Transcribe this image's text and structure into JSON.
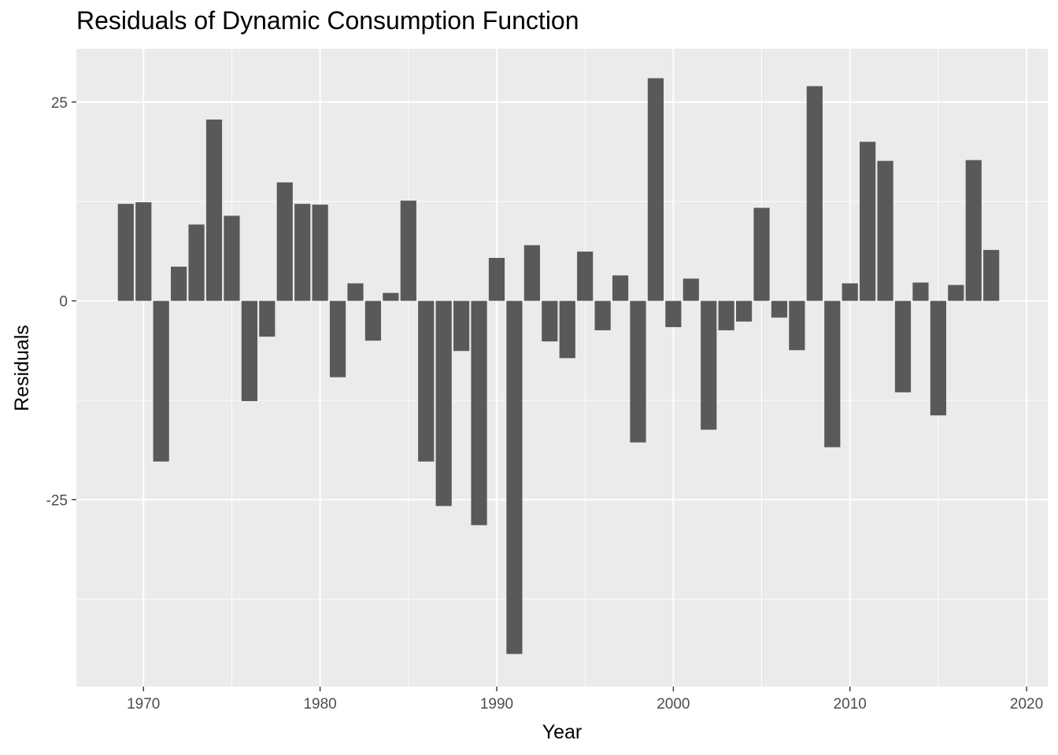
{
  "chart_data": {
    "type": "bar",
    "title": "Residuals of Dynamic Consumption Function",
    "xlabel": "Year",
    "ylabel": "Residuals",
    "xlim": [
      1966.2,
      2021.2
    ],
    "ylim": [
      -48.5,
      31.7
    ],
    "x_ticks": [
      1970,
      1980,
      1990,
      2000,
      2010,
      2020
    ],
    "y_ticks": [
      25,
      0,
      -25
    ],
    "y_tick_labels": [
      "25",
      "0",
      "-25"
    ],
    "grid": true,
    "legend": "none",
    "colors": {
      "panel": "#EBEBEB",
      "grid": "#FFFFFF",
      "bar": "#595959",
      "tick_text": "#4D4D4D"
    },
    "x": [
      1969,
      1970,
      1971,
      1972,
      1973,
      1974,
      1975,
      1976,
      1977,
      1978,
      1979,
      1980,
      1981,
      1982,
      1983,
      1984,
      1985,
      1986,
      1987,
      1988,
      1989,
      1990,
      1991,
      1992,
      1993,
      1994,
      1995,
      1996,
      1997,
      1998,
      1999,
      2000,
      2001,
      2002,
      2003,
      2004,
      2005,
      2006,
      2007,
      2008,
      2009,
      2010,
      2011,
      2012,
      2013,
      2014,
      2015,
      2016,
      2017,
      2018
    ],
    "values": [
      12.2,
      12.4,
      -20.2,
      4.3,
      9.6,
      22.8,
      10.7,
      -12.6,
      -4.5,
      14.9,
      12.2,
      12.1,
      -9.6,
      2.2,
      -5.0,
      1.0,
      12.6,
      -20.2,
      -25.8,
      -6.3,
      -28.2,
      5.4,
      -44.4,
      7.0,
      -5.1,
      -7.2,
      6.2,
      -3.7,
      3.2,
      -17.8,
      28.0,
      -3.3,
      2.8,
      -16.2,
      -3.7,
      -2.6,
      11.7,
      -2.1,
      -6.2,
      27.0,
      -18.4,
      2.2,
      20.0,
      17.6,
      -11.5,
      2.3,
      -14.4,
      2.0,
      17.7,
      6.4
    ]
  }
}
